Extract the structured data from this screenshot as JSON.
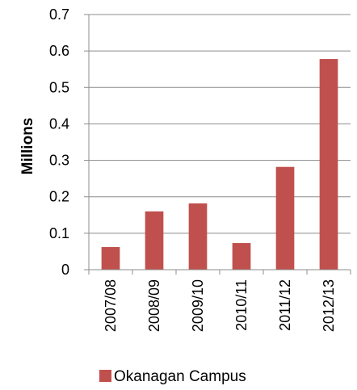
{
  "chart_data": {
    "type": "bar",
    "title": "",
    "xlabel": "",
    "ylabel": "Millions",
    "categories": [
      "2007/08",
      "2008/09",
      "2009/10",
      "2010/11",
      "2011/12",
      "2012/13"
    ],
    "series": [
      {
        "name": "Okanagan Campus",
        "values": [
          0.062,
          0.16,
          0.182,
          0.073,
          0.282,
          0.578
        ],
        "color": "#C0504D"
      }
    ],
    "ylim": [
      0,
      0.7
    ],
    "yticks": [
      "0",
      "0.1",
      "0.2",
      "0.3",
      "0.4",
      "0.5",
      "0.6",
      "0.7"
    ],
    "grid": true,
    "legend_position": "bottom"
  }
}
